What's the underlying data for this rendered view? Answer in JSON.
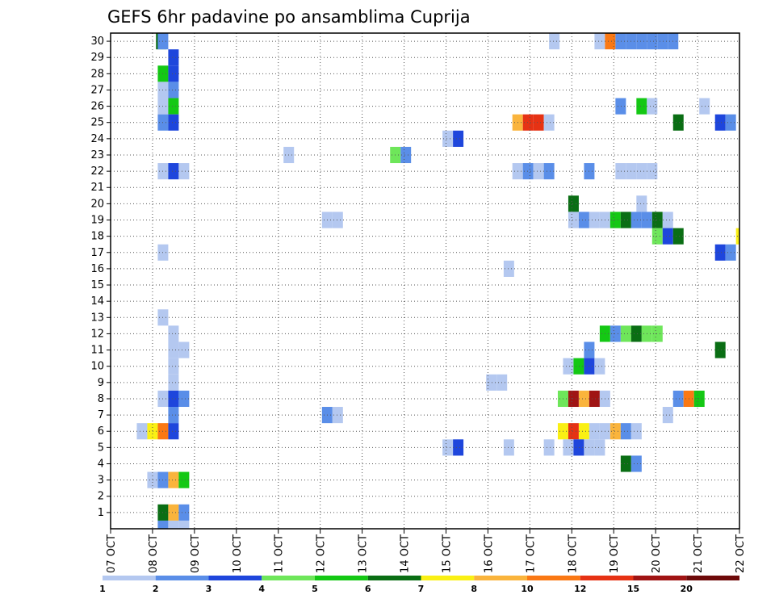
{
  "chart_data": {
    "type": "heatmap",
    "title": "GEFS 6hr padavine po ansamblima Cuprija",
    "x_tick_labels": [
      "07 OCT",
      "08 OCT",
      "09 OCT",
      "10 OCT",
      "11 OCT",
      "12 OCT",
      "13 OCT",
      "14 OCT",
      "15 OCT",
      "16 OCT",
      "17 OCT",
      "18 OCT",
      "19 OCT",
      "20 OCT",
      "21 OCT",
      "22 OCT"
    ],
    "y_tick_labels": [
      "1",
      "2",
      "3",
      "4",
      "5",
      "6",
      "7",
      "8",
      "9",
      "10",
      "11",
      "12",
      "13",
      "14",
      "15",
      "16",
      "17",
      "18",
      "19",
      "20",
      "21",
      "22",
      "23",
      "24",
      "25",
      "26",
      "27",
      "28",
      "29",
      "30"
    ],
    "x_range_hours": [
      0,
      360
    ],
    "x_step_hours": 6,
    "y_range_members": [
      0,
      30.5
    ],
    "grid": true,
    "colorbar": {
      "labels": [
        "1",
        "2",
        "3",
        "4",
        "5",
        "6",
        "7",
        "8",
        "10",
        "12",
        "15",
        "20"
      ],
      "colors": [
        "#b4c8f0",
        "#5a8ee8",
        "#1e46dc",
        "#6ee65a",
        "#14c814",
        "#0a6e14",
        "#faf014",
        "#fab43c",
        "#fa7814",
        "#e63214",
        "#a01414",
        "#6e0a0a"
      ]
    },
    "cell_value_classes": [
      "1-2",
      "2-3",
      "3-4",
      "4-5",
      "5-6",
      "6-7",
      "7-8",
      "8-10",
      "10-12",
      "12-15",
      "15-20",
      "20+"
    ],
    "cells": [
      {
        "member": 30,
        "cells": [
          [
            26,
            5
          ],
          [
            27,
            1
          ],
          [
            251,
            0
          ],
          [
            277,
            0
          ],
          [
            283,
            8
          ],
          [
            289,
            1
          ],
          [
            295,
            1
          ],
          [
            301,
            1
          ],
          [
            307,
            1
          ],
          [
            313,
            1
          ],
          [
            319,
            1
          ]
        ]
      },
      {
        "member": 29,
        "cells": [
          [
            33,
            2
          ]
        ]
      },
      {
        "member": 28,
        "cells": [
          [
            27,
            4
          ],
          [
            33,
            2
          ]
        ]
      },
      {
        "member": 27,
        "cells": [
          [
            27,
            0
          ],
          [
            33,
            1
          ]
        ]
      },
      {
        "member": 26,
        "cells": [
          [
            27,
            0
          ],
          [
            33,
            4
          ],
          [
            289,
            1
          ],
          [
            301,
            4
          ],
          [
            307,
            0
          ],
          [
            337,
            0
          ]
        ]
      },
      {
        "member": 25,
        "cells": [
          [
            27,
            1
          ],
          [
            33,
            2
          ],
          [
            230,
            7
          ],
          [
            236,
            9
          ],
          [
            242,
            9
          ],
          [
            248,
            0
          ],
          [
            322,
            5
          ],
          [
            346,
            2
          ],
          [
            352,
            1
          ]
        ]
      },
      {
        "member": 24,
        "cells": [
          [
            190,
            0
          ],
          [
            196,
            2
          ]
        ]
      },
      {
        "member": 23,
        "cells": [
          [
            99,
            0
          ],
          [
            160,
            3
          ],
          [
            166,
            1
          ]
        ]
      },
      {
        "member": 22,
        "cells": [
          [
            27,
            0
          ],
          [
            33,
            2
          ],
          [
            39,
            0
          ],
          [
            230,
            0
          ],
          [
            236,
            1
          ],
          [
            242,
            0
          ],
          [
            248,
            1
          ],
          [
            271,
            1
          ],
          [
            289,
            0
          ],
          [
            295,
            0
          ],
          [
            301,
            0
          ],
          [
            307,
            0
          ]
        ]
      },
      {
        "member": 20,
        "cells": [
          [
            262,
            5
          ],
          [
            301,
            0
          ]
        ]
      },
      {
        "member": 19,
        "cells": [
          [
            121,
            0
          ],
          [
            127,
            0
          ],
          [
            262,
            0
          ],
          [
            268,
            1
          ],
          [
            274,
            0
          ],
          [
            280,
            0
          ],
          [
            286,
            4
          ],
          [
            292,
            5
          ],
          [
            298,
            1
          ],
          [
            304,
            1
          ],
          [
            310,
            5
          ],
          [
            316,
            0
          ]
        ]
      },
      {
        "member": 18,
        "cells": [
          [
            310,
            3
          ],
          [
            316,
            2
          ],
          [
            322,
            5
          ],
          [
            358,
            6
          ]
        ]
      },
      {
        "member": 17,
        "cells": [
          [
            27,
            0
          ],
          [
            346,
            2
          ],
          [
            352,
            1
          ]
        ]
      },
      {
        "member": 16,
        "cells": [
          [
            225,
            0
          ]
        ]
      },
      {
        "member": 13,
        "cells": [
          [
            27,
            0
          ]
        ]
      },
      {
        "member": 12,
        "cells": [
          [
            33,
            0
          ],
          [
            280,
            4
          ],
          [
            286,
            1
          ],
          [
            292,
            3
          ],
          [
            298,
            5
          ],
          [
            304,
            3
          ],
          [
            310,
            3
          ]
        ]
      },
      {
        "member": 11,
        "cells": [
          [
            33,
            0
          ],
          [
            39,
            0
          ],
          [
            271,
            1
          ],
          [
            346,
            5
          ]
        ]
      },
      {
        "member": 10,
        "cells": [
          [
            33,
            0
          ],
          [
            259,
            0
          ],
          [
            265,
            4
          ],
          [
            271,
            2
          ],
          [
            277,
            0
          ]
        ]
      },
      {
        "member": 9,
        "cells": [
          [
            215,
            0
          ],
          [
            221,
            0
          ],
          [
            33,
            0
          ]
        ]
      },
      {
        "member": 8,
        "cells": [
          [
            27,
            0
          ],
          [
            33,
            2
          ],
          [
            39,
            1
          ],
          [
            256,
            3
          ],
          [
            262,
            10
          ],
          [
            268,
            7
          ],
          [
            274,
            10
          ],
          [
            280,
            0
          ],
          [
            322,
            1
          ],
          [
            328,
            8
          ],
          [
            334,
            4
          ]
        ]
      },
      {
        "member": 7,
        "cells": [
          [
            121,
            1
          ],
          [
            127,
            0
          ],
          [
            33,
            1
          ],
          [
            316,
            0
          ]
        ]
      },
      {
        "member": 6,
        "cells": [
          [
            15,
            0
          ],
          [
            21,
            6
          ],
          [
            27,
            8
          ],
          [
            33,
            2
          ],
          [
            256,
            6
          ],
          [
            262,
            9
          ],
          [
            268,
            6
          ],
          [
            274,
            0
          ],
          [
            280,
            0
          ],
          [
            286,
            7
          ],
          [
            292,
            1
          ],
          [
            298,
            0
          ]
        ]
      },
      {
        "member": 5,
        "cells": [
          [
            190,
            0
          ],
          [
            196,
            2
          ],
          [
            225,
            0
          ],
          [
            248,
            0
          ],
          [
            259,
            0
          ],
          [
            265,
            2
          ],
          [
            271,
            0
          ],
          [
            277,
            0
          ]
        ]
      },
      {
        "member": 4,
        "cells": [
          [
            292,
            5
          ],
          [
            298,
            1
          ]
        ]
      },
      {
        "member": 3,
        "cells": [
          [
            21,
            0
          ],
          [
            27,
            1
          ],
          [
            33,
            7
          ],
          [
            39,
            4
          ]
        ]
      },
      {
        "member": 1,
        "cells": [
          [
            27,
            5
          ],
          [
            33,
            7
          ],
          [
            39,
            1
          ]
        ]
      },
      {
        "member": 0,
        "cells": [
          [
            27,
            1
          ],
          [
            33,
            0
          ],
          [
            39,
            0
          ]
        ]
      }
    ]
  }
}
